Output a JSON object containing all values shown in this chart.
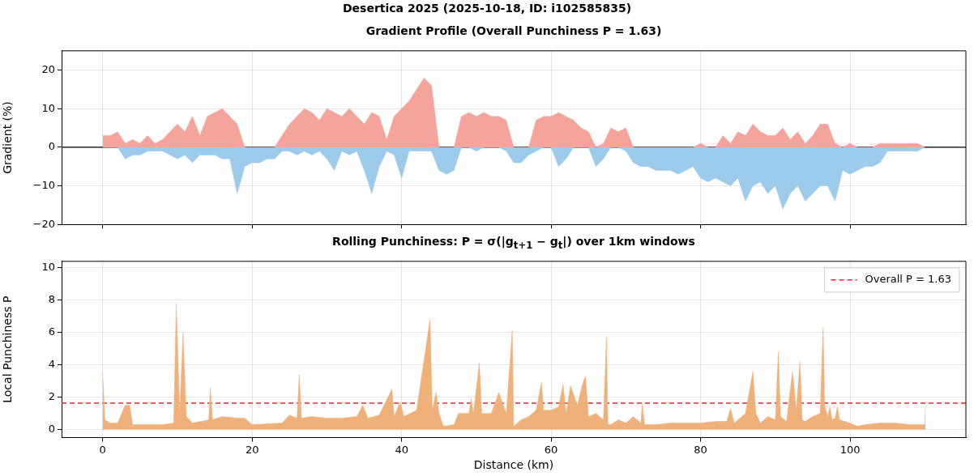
{
  "chart_data": [
    {
      "type": "area",
      "title": "Gradient Profile (Overall Punchiness P = 1.63)",
      "ylabel": "Gradient (%)",
      "annotations": [
        "Desertica 2025 (2025-10-18, ID: i102585835)"
      ],
      "x": [
        0,
        1,
        2,
        3,
        4,
        5,
        6,
        7,
        8,
        9,
        10,
        11,
        12,
        13,
        14,
        15,
        16,
        17,
        18,
        19,
        20,
        21,
        22,
        23,
        24,
        25,
        26,
        27,
        28,
        29,
        30,
        31,
        32,
        33,
        34,
        35,
        36,
        37,
        38,
        39,
        40,
        41,
        42,
        43,
        44,
        45,
        46,
        47,
        48,
        49,
        50,
        51,
        52,
        53,
        54,
        55,
        56,
        57,
        58,
        59,
        60,
        61,
        62,
        63,
        64,
        65,
        66,
        67,
        68,
        69,
        70,
        71,
        72,
        73,
        74,
        75,
        76,
        77,
        78,
        79,
        80,
        81,
        82,
        83,
        84,
        85,
        86,
        87,
        88,
        89,
        90,
        91,
        92,
        93,
        94,
        95,
        96,
        97,
        98,
        99,
        100,
        101,
        102,
        103,
        104,
        105,
        106,
        107,
        108,
        109,
        110
      ],
      "series": [
        {
          "color": "#f4a49a",
          "values": [
            3,
            3,
            4,
            1,
            2,
            1,
            3,
            1,
            2,
            4,
            6,
            4,
            8,
            3,
            8,
            9,
            10,
            8,
            6,
            0,
            0,
            0,
            0,
            0,
            3,
            6,
            8,
            10,
            9,
            7,
            10,
            9,
            8,
            10,
            8,
            6,
            9,
            8,
            2,
            8,
            10,
            12,
            15,
            18,
            16,
            0,
            0,
            0,
            8,
            9,
            8,
            9,
            8,
            8,
            7,
            0,
            0,
            0,
            7,
            8,
            8,
            9,
            8,
            7,
            5,
            4,
            0,
            1,
            5,
            4,
            5,
            0,
            0,
            0,
            0,
            0,
            0,
            0,
            0,
            0,
            1,
            0,
            0,
            3,
            1,
            4,
            3,
            6,
            4,
            3,
            3,
            5,
            2,
            4,
            1,
            3,
            6,
            6,
            1,
            0,
            1,
            0,
            0,
            0,
            1,
            1,
            1,
            1,
            1,
            1,
            0
          ]
        },
        {
          "color": "#9ccbeb",
          "values": [
            0,
            0,
            0,
            -3,
            -2,
            -2,
            -1,
            -1,
            -1,
            -2,
            -3,
            -2,
            -4,
            -2,
            -2,
            -2,
            -3,
            -3,
            -12,
            -5,
            -4,
            -4,
            -3,
            -3,
            -1,
            -1,
            -2,
            -1,
            -2,
            -1,
            -3,
            -6,
            -1,
            -2,
            -1,
            -6,
            -12,
            -5,
            -1,
            -2,
            -8,
            -1,
            -1,
            -1,
            -1,
            -6,
            -7,
            -6,
            0,
            0,
            -1,
            0,
            0,
            0,
            -1,
            -4,
            -4,
            -2,
            -1,
            0,
            0,
            -5,
            -3,
            0,
            0,
            0,
            -5,
            -3,
            0,
            0,
            -1,
            -4,
            -5,
            -5,
            -6,
            -6,
            -6,
            -7,
            -6,
            -5,
            -8,
            -9,
            -8,
            -9,
            -10,
            -8,
            -14,
            -10,
            -9,
            -12,
            -10,
            -16,
            -12,
            -10,
            -14,
            -12,
            -10,
            -10,
            -14,
            -6,
            -7,
            -6,
            -5,
            -5,
            -4,
            -1,
            -1,
            -1,
            -1,
            -1,
            0
          ]
        }
      ],
      "xlim": [
        -5.5,
        115.5
      ],
      "xticks": [
        0,
        20,
        40,
        60,
        80,
        100
      ],
      "ylim": [
        -20,
        25
      ],
      "yticks": [
        -20,
        -10,
        0,
        10,
        20
      ],
      "tick_labels": "y",
      "grid": true,
      "ref_lines": [
        {
          "axis": "y",
          "value": 0,
          "color": "#000000"
        }
      ]
    },
    {
      "type": "area",
      "title": "Rolling Punchiness: P = σ(|g$_{t+1}$ − g$_{t}$|) over 1km windows",
      "xlabel": "Distance (km)",
      "ylabel": "Local Punchiness P",
      "x": [
        0,
        0.3,
        1,
        2,
        3,
        3.6,
        4,
        6,
        8,
        9.5,
        9.85,
        10.3,
        10.75,
        11.2,
        12,
        14.2,
        14.4,
        14.7,
        16,
        18,
        19,
        20,
        24,
        25,
        26,
        26.3,
        26.6,
        28,
        30,
        32,
        34,
        34.8,
        35.5,
        37,
        38.7,
        39,
        39.8,
        40.3,
        42,
        43.8,
        44.1,
        44.6,
        45,
        45.6,
        47,
        47.6,
        49,
        49.3,
        49.6,
        50.4,
        50.7,
        52,
        53,
        54,
        54.8,
        55,
        56,
        57,
        58,
        58.7,
        59,
        60,
        61,
        61.6,
        62,
        62.6,
        63.5,
        64.2,
        64.6,
        65,
        66,
        67,
        67.4,
        67.6,
        68,
        69,
        70,
        71,
        72,
        72.2,
        72.5,
        74,
        76,
        78,
        80,
        82,
        83.5,
        84,
        84.5,
        86,
        87,
        87.4,
        88,
        89,
        90,
        90.4,
        90.7,
        91.5,
        92.3,
        92.8,
        93.3,
        93.6,
        94,
        95,
        96,
        96.4,
        96.6,
        97,
        97.3,
        97.6,
        98,
        98.3,
        98.6,
        100,
        101,
        102,
        104,
        106,
        108,
        110,
        110.1
      ],
      "series": [
        {
          "color": "#f0b07a",
          "values": [
            3.5,
            0.6,
            0.4,
            0.4,
            1.5,
            1.5,
            0.3,
            0.3,
            0.3,
            0.4,
            7.8,
            1,
            6,
            0.8,
            0.4,
            0.6,
            2.6,
            0.6,
            0.8,
            0.7,
            0.7,
            0.3,
            0.4,
            0.9,
            0.7,
            3.4,
            0.7,
            0.8,
            0.7,
            0.7,
            0.8,
            1.5,
            0.7,
            0.9,
            2.5,
            0.8,
            1.7,
            0.8,
            1.2,
            6.8,
            1.2,
            2.3,
            1,
            0.2,
            0.3,
            1,
            1,
            1.9,
            1,
            4.1,
            1,
            1,
            2.3,
            1,
            6.1,
            0.2,
            0.6,
            0.8,
            1.2,
            2.9,
            1.2,
            1.2,
            1.4,
            2.8,
            1,
            2.7,
            1.5,
            2.8,
            3.3,
            0.8,
            1,
            0.6,
            5.7,
            0.3,
            0.3,
            0.6,
            0.4,
            0.8,
            0.4,
            1.6,
            0.3,
            0.3,
            0.4,
            0.4,
            0.4,
            0.5,
            0.5,
            1.3,
            0.4,
            1,
            3.6,
            1,
            0.4,
            0.8,
            0.6,
            4.8,
            0.8,
            0.5,
            3.6,
            1.2,
            4.2,
            0.6,
            0.5,
            0.8,
            1,
            6.3,
            1.5,
            0.8,
            1.4,
            0.6,
            0.7,
            1.4,
            0.6,
            0.4,
            0.2,
            0.3,
            0.4,
            0.4,
            0.3,
            0.3,
            1.5
          ]
        }
      ],
      "xlim": [
        -5.5,
        115.5
      ],
      "xticks": [
        0,
        20,
        40,
        60,
        80,
        100
      ],
      "ylim": [
        -0.5,
        10.4
      ],
      "yticks": [
        0,
        2,
        4,
        6,
        8,
        10
      ],
      "grid": true,
      "legend": "top right",
      "ref_lines": [
        {
          "axis": "y",
          "value": 1.63,
          "label": "Overall P = 1.63",
          "color": "#e8262a",
          "line_style": "dashed"
        }
      ]
    }
  ]
}
